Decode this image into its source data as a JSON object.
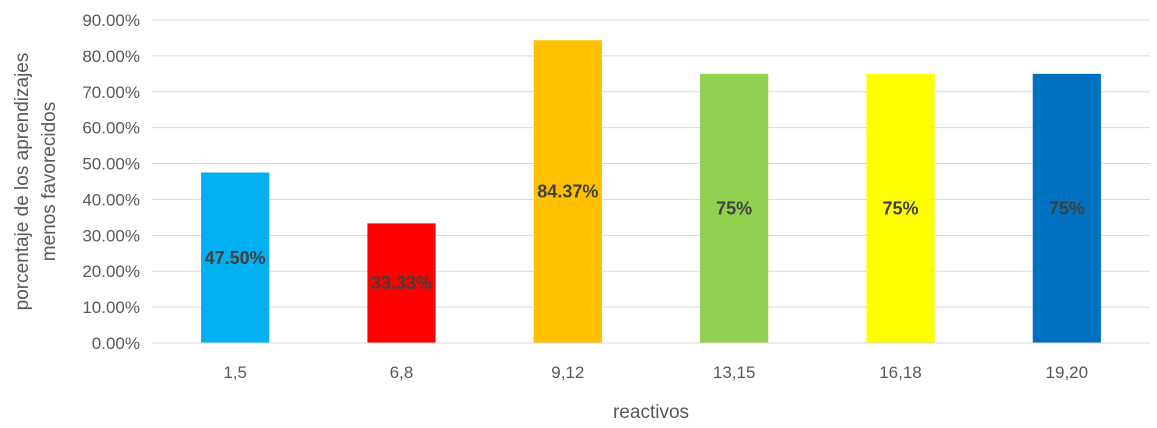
{
  "chart_data": {
    "type": "bar",
    "title": "",
    "xlabel": "reactivos",
    "ylabel_lines": [
      "porcentaje de los aprendizajes",
      "menos favorecidos"
    ],
    "categories": [
      "1,5",
      "6,8",
      "9,12",
      "13,15",
      "16,18",
      "19,20"
    ],
    "values": [
      47.5,
      33.33,
      84.37,
      75,
      75,
      75
    ],
    "data_labels": [
      "47.50%",
      "33.33%",
      "84.37%",
      "75%",
      "75%",
      "75%"
    ],
    "bar_colors": [
      "#00b0f0",
      "#ff0000",
      "#ffc000",
      "#92d050",
      "#ffff00",
      "#0070c0"
    ],
    "ylim": [
      0,
      90
    ],
    "yticks": [
      "0.00%",
      "10.00%",
      "20.00%",
      "30.00%",
      "40.00%",
      "50.00%",
      "60.00%",
      "70.00%",
      "80.00%",
      "90.00%"
    ],
    "grid": true,
    "legend": "none"
  }
}
